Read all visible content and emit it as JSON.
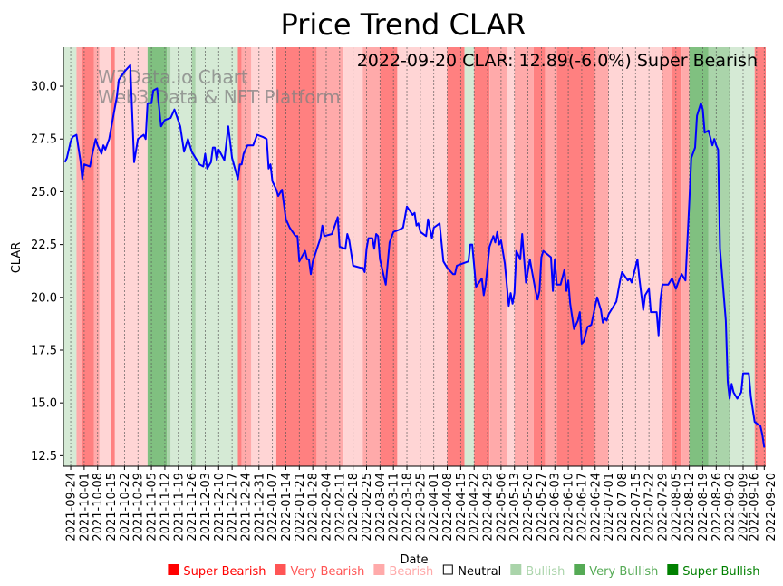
{
  "chart_data": {
    "type": "line",
    "title": "Price Trend CLAR",
    "xlabel": "Date",
    "ylabel": "CLAR",
    "annotation": "2022-09-20 CLAR: 12.89(-6.0%) Super Bearish",
    "watermark": [
      "W3Data.io Chart",
      "Web3 Data & NFT Platform"
    ],
    "x_unit": "days since 2021-09-24",
    "start_date": "2021-09-24",
    "xlim": [
      -3.8,
      361.8
    ],
    "ylim": [
      12.0,
      31.85
    ],
    "yticks": [
      12.5,
      15.0,
      17.5,
      20.0,
      22.5,
      25.0,
      27.5,
      30.0
    ],
    "ytick_labels": [
      "12.5",
      "15.0",
      "17.5",
      "20.0",
      "22.5",
      "25.0",
      "27.5",
      "30.0"
    ],
    "xticks": [
      0,
      7,
      14,
      21,
      28,
      35,
      42,
      49,
      56,
      63,
      70,
      77,
      84,
      91,
      98,
      105,
      112,
      119,
      126,
      133,
      140,
      147,
      154,
      161,
      168,
      175,
      182,
      189,
      196,
      203,
      210,
      217,
      224,
      231,
      238,
      245,
      252,
      259,
      266,
      273,
      280,
      287,
      294,
      301,
      308,
      315,
      322,
      329,
      336,
      343,
      350,
      357,
      361
    ],
    "xtick_labels": [
      "2021-09-24",
      "2021-10-01",
      "2021-10-08",
      "2021-10-15",
      "2021-10-22",
      "2021-10-29",
      "2021-11-05",
      "2021-11-12",
      "2021-11-19",
      "2021-11-26",
      "2021-12-03",
      "2021-12-10",
      "2021-12-17",
      "2021-12-24",
      "2021-12-31",
      "2022-01-07",
      "2022-01-14",
      "2022-01-21",
      "2022-01-28",
      "2022-02-04",
      "2022-02-11",
      "2022-02-18",
      "2022-02-25",
      "2022-03-04",
      "2022-03-11",
      "2022-03-18",
      "2022-03-25",
      "2022-04-01",
      "2022-04-08",
      "2022-04-15",
      "2022-04-22",
      "2022-04-29",
      "2022-05-06",
      "2022-05-13",
      "2022-05-20",
      "2022-05-27",
      "2022-06-03",
      "2022-06-10",
      "2022-06-17",
      "2022-06-24",
      "2022-07-01",
      "2022-07-08",
      "2022-07-15",
      "2022-07-22",
      "2022-07-29",
      "2022-08-05",
      "2022-08-12",
      "2022-08-19",
      "2022-08-26",
      "2022-09-02",
      "2022-09-09",
      "2022-09-16",
      "2022-09-20"
    ],
    "grid": "x dashed",
    "series": [
      {
        "name": "CLAR",
        "color": "#0000ff",
        "x": [
          -3,
          -2,
          0,
          1,
          3,
          5,
          6,
          7,
          10,
          11,
          13,
          14,
          16,
          17,
          18,
          20,
          22,
          24,
          25,
          28,
          31,
          33,
          35,
          38,
          39,
          40,
          42,
          43,
          45,
          47,
          49,
          52,
          54,
          57,
          59,
          61,
          63,
          65,
          67,
          69,
          70,
          71,
          73,
          74,
          75,
          76,
          77,
          80,
          82,
          84,
          87,
          88,
          89,
          90,
          92,
          95,
          97,
          100,
          102,
          103,
          104,
          105,
          107,
          108,
          110,
          112,
          114,
          117,
          118,
          119,
          122,
          123,
          124,
          125,
          126,
          130,
          131,
          132,
          136,
          139,
          140,
          143,
          144,
          145,
          147,
          151,
          152,
          153,
          154,
          155,
          157,
          158,
          159,
          160,
          161,
          164,
          166,
          168,
          171,
          173,
          175,
          178,
          179,
          180,
          181,
          182,
          185,
          186,
          188,
          189,
          192,
          194,
          196,
          199,
          200,
          201,
          207,
          208,
          209,
          211,
          214,
          215,
          216,
          218,
          220,
          221,
          222,
          223,
          224,
          226,
          228,
          229,
          230,
          231,
          232,
          234,
          235,
          237,
          239,
          242,
          243,
          244,
          245,
          246,
          250,
          251,
          252,
          253,
          255,
          257,
          258,
          259,
          260,
          262,
          264,
          265,
          266,
          267,
          269,
          271,
          273,
          274,
          276,
          277,
          278,
          279,
          280,
          284,
          286,
          287,
          290,
          291,
          292,
          295,
          296,
          298,
          299,
          301,
          302,
          305,
          306,
          307,
          308,
          311,
          313,
          315,
          317,
          318,
          320,
          322,
          323,
          325,
          326,
          328,
          329,
          330,
          332,
          334,
          335,
          336,
          337,
          338,
          341,
          342,
          343,
          344,
          345,
          347,
          349,
          350,
          353,
          354,
          355,
          356,
          359,
          360,
          361
        ],
        "values": [
          26.4,
          26.6,
          27.4,
          27.6,
          27.7,
          26.5,
          25.6,
          26.3,
          26.2,
          26.7,
          27.5,
          27.2,
          26.8,
          27.2,
          27.0,
          27.5,
          28.5,
          29.5,
          30.3,
          30.7,
          31.0,
          26.4,
          27.5,
          27.7,
          27.5,
          29.2,
          29.2,
          29.8,
          29.9,
          28.1,
          28.4,
          28.5,
          28.9,
          28.1,
          26.9,
          27.5,
          26.9,
          26.6,
          26.3,
          26.2,
          26.8,
          26.1,
          26.4,
          27.1,
          27.1,
          26.5,
          27.0,
          26.5,
          28.1,
          26.6,
          25.6,
          26.3,
          26.3,
          26.8,
          27.2,
          27.2,
          27.7,
          27.6,
          27.5,
          26.1,
          26.3,
          25.5,
          25.1,
          24.8,
          25.1,
          23.7,
          23.3,
          22.9,
          22.9,
          21.7,
          22.2,
          21.8,
          21.8,
          21.1,
          21.7,
          22.8,
          23.4,
          22.9,
          23.0,
          23.8,
          22.4,
          22.3,
          23.0,
          22.7,
          21.5,
          21.4,
          21.4,
          21.2,
          22.3,
          22.8,
          22.8,
          22.3,
          23.0,
          22.9,
          21.8,
          20.6,
          22.6,
          23.1,
          23.2,
          23.3,
          24.3,
          23.9,
          24.0,
          23.4,
          23.5,
          23.1,
          22.9,
          23.7,
          22.8,
          23.3,
          23.5,
          21.7,
          21.4,
          21.1,
          21.1,
          21.5,
          21.7,
          22.5,
          22.5,
          20.5,
          20.9,
          20.1,
          20.6,
          22.4,
          22.9,
          22.6,
          23.1,
          22.5,
          22.7,
          21.6,
          19.6,
          20.2,
          19.7,
          20.2,
          22.2,
          21.8,
          23.0,
          20.7,
          21.8,
          20.3,
          19.9,
          20.3,
          21.9,
          22.2,
          21.9,
          20.3,
          21.8,
          20.6,
          20.6,
          21.3,
          20.3,
          20.8,
          19.7,
          18.5,
          18.9,
          19.3,
          17.8,
          17.9,
          18.6,
          18.7,
          19.6,
          20.0,
          19.4,
          18.8,
          19.0,
          18.9,
          19.2,
          19.8,
          20.8,
          21.2,
          20.8,
          20.9,
          20.7,
          21.8,
          20.9,
          19.4,
          20.1,
          20.4,
          19.3,
          19.3,
          18.2,
          19.9,
          20.6,
          20.6,
          20.9,
          20.4,
          20.9,
          21.1,
          20.8,
          24.5,
          26.6,
          27.1,
          28.6,
          29.2,
          28.9,
          27.8,
          27.9,
          27.2,
          27.5,
          27.2,
          27.0,
          22.3,
          18.9,
          16.0,
          15.2,
          15.9,
          15.5,
          15.2,
          15.5,
          16.4,
          16.4,
          15.3,
          14.7,
          14.1,
          13.9,
          13.5,
          12.89
        ]
      }
    ],
    "bands": [
      {
        "start": -4,
        "end": 3,
        "level": "Bullish"
      },
      {
        "start": 3,
        "end": 6,
        "level": "Bearish"
      },
      {
        "start": 6,
        "end": 12,
        "level": "Super Bearish"
      },
      {
        "start": 12,
        "end": 15,
        "level": "Bearish"
      },
      {
        "start": 15,
        "end": 21,
        "level": "Neutral-Bearish"
      },
      {
        "start": 21,
        "end": 23,
        "level": "Super Bearish"
      },
      {
        "start": 23,
        "end": 40,
        "level": "Neutral-Bearish"
      },
      {
        "start": 40,
        "end": 50,
        "level": "Super Bullish"
      },
      {
        "start": 50,
        "end": 52,
        "level": "Very Bullish"
      },
      {
        "start": 52,
        "end": 63,
        "level": "Bullish"
      },
      {
        "start": 63,
        "end": 65,
        "level": "Very Bullish"
      },
      {
        "start": 65,
        "end": 87,
        "level": "Bullish"
      },
      {
        "start": 87,
        "end": 89,
        "level": "Super Bearish"
      },
      {
        "start": 89,
        "end": 94,
        "level": "Bearish"
      },
      {
        "start": 94,
        "end": 107,
        "level": "Neutral-Bearish"
      },
      {
        "start": 107,
        "end": 128,
        "level": "Super Bearish"
      },
      {
        "start": 128,
        "end": 142,
        "level": "Bearish"
      },
      {
        "start": 142,
        "end": 152,
        "level": "Neutral-Bearish"
      },
      {
        "start": 152,
        "end": 161,
        "level": "Bearish"
      },
      {
        "start": 161,
        "end": 170,
        "level": "Super Bearish"
      },
      {
        "start": 170,
        "end": 196,
        "level": "Neutral-Bearish"
      },
      {
        "start": 196,
        "end": 205,
        "level": "Super Bearish"
      },
      {
        "start": 205,
        "end": 210,
        "level": "Bullish"
      },
      {
        "start": 210,
        "end": 218,
        "level": "Super Bearish"
      },
      {
        "start": 218,
        "end": 227,
        "level": "Bearish"
      },
      {
        "start": 227,
        "end": 231,
        "level": "Neutral-Bearish"
      },
      {
        "start": 231,
        "end": 241,
        "level": "Bearish"
      },
      {
        "start": 241,
        "end": 247,
        "level": "Super Bearish"
      },
      {
        "start": 247,
        "end": 253,
        "level": "Bearish"
      },
      {
        "start": 253,
        "end": 273,
        "level": "Super Bearish"
      },
      {
        "start": 273,
        "end": 280,
        "level": "Bearish"
      },
      {
        "start": 280,
        "end": 308,
        "level": "Neutral-Bearish"
      },
      {
        "start": 308,
        "end": 313,
        "level": "Bearish"
      },
      {
        "start": 313,
        "end": 318,
        "level": "Super Bearish"
      },
      {
        "start": 318,
        "end": 322,
        "level": "Bearish"
      },
      {
        "start": 322,
        "end": 332,
        "level": "Super Bullish"
      },
      {
        "start": 332,
        "end": 343,
        "level": "Very Bullish"
      },
      {
        "start": 343,
        "end": 356,
        "level": "Bullish"
      },
      {
        "start": 356,
        "end": 362,
        "level": "Super Bearish"
      }
    ],
    "band_colors": {
      "Super Bearish": "#ff8080",
      "Very Bearish": "#ff9999",
      "Bearish": "#ffaaaa",
      "Neutral-Bearish": "#ffd5d5",
      "Bullish": "#d5ead5",
      "Very Bullish": "#aad4aa",
      "Super Bullish": "#80c080"
    },
    "legend": {
      "placement": "bottom",
      "items": [
        {
          "label": "Super Bearish",
          "color": "#ff0000"
        },
        {
          "label": "Very Bearish",
          "color": "#ff5555"
        },
        {
          "label": "Bearish",
          "color": "#ffaaaa"
        },
        {
          "label": "Neutral",
          "color": "#000000"
        },
        {
          "label": "Bullish",
          "color": "#aad4aa"
        },
        {
          "label": "Very Bullish",
          "color": "#55aa55"
        },
        {
          "label": "Super Bullish",
          "color": "#008000"
        }
      ]
    }
  }
}
